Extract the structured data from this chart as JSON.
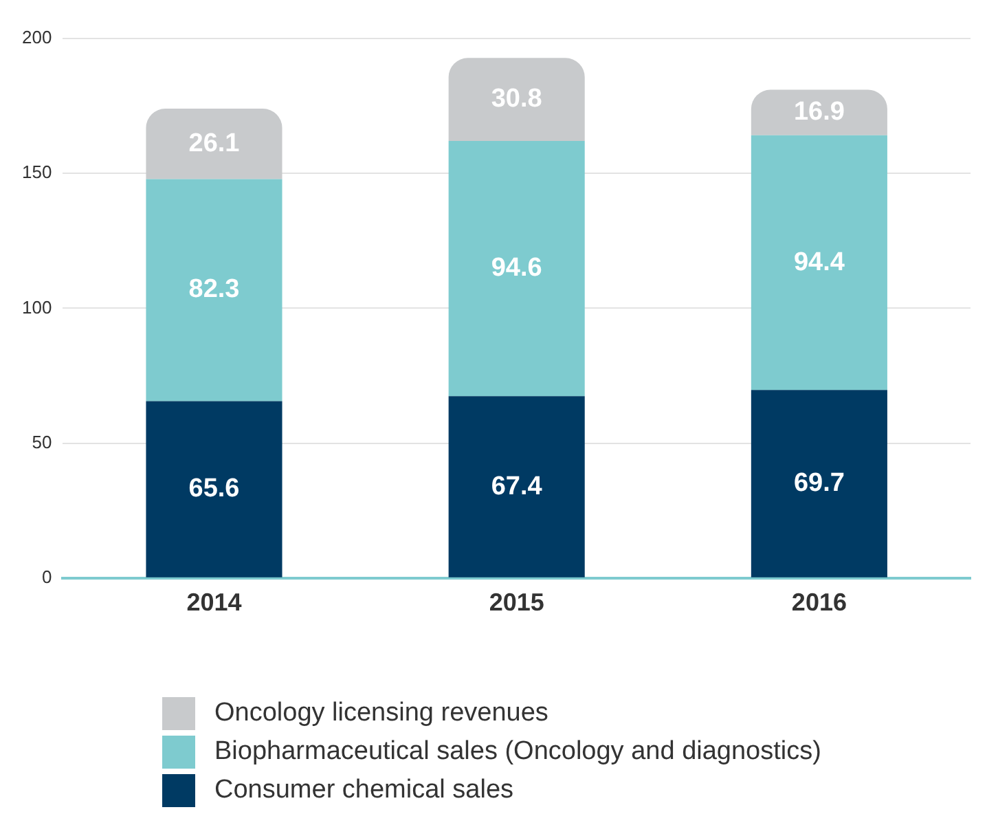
{
  "chart_data": {
    "type": "bar",
    "stacked": true,
    "categories": [
      "2014",
      "2015",
      "2016"
    ],
    "series": [
      {
        "name": "Consumer chemical sales",
        "color": "#003a63",
        "values": [
          65.6,
          67.4,
          69.7
        ]
      },
      {
        "name": "Biopharmaceutical sales (Oncology and diagnostics)",
        "color": "#7ecbcf",
        "values": [
          82.3,
          94.6,
          94.4
        ]
      },
      {
        "name": "Oncology licensing revenues",
        "color": "#c8cacc",
        "values": [
          26.1,
          30.8,
          16.9
        ]
      }
    ],
    "ylim": [
      0,
      200
    ],
    "yticks": [
      0,
      50,
      100,
      150,
      200
    ],
    "grid": "y",
    "data_labels": true,
    "legend": "bottom"
  }
}
